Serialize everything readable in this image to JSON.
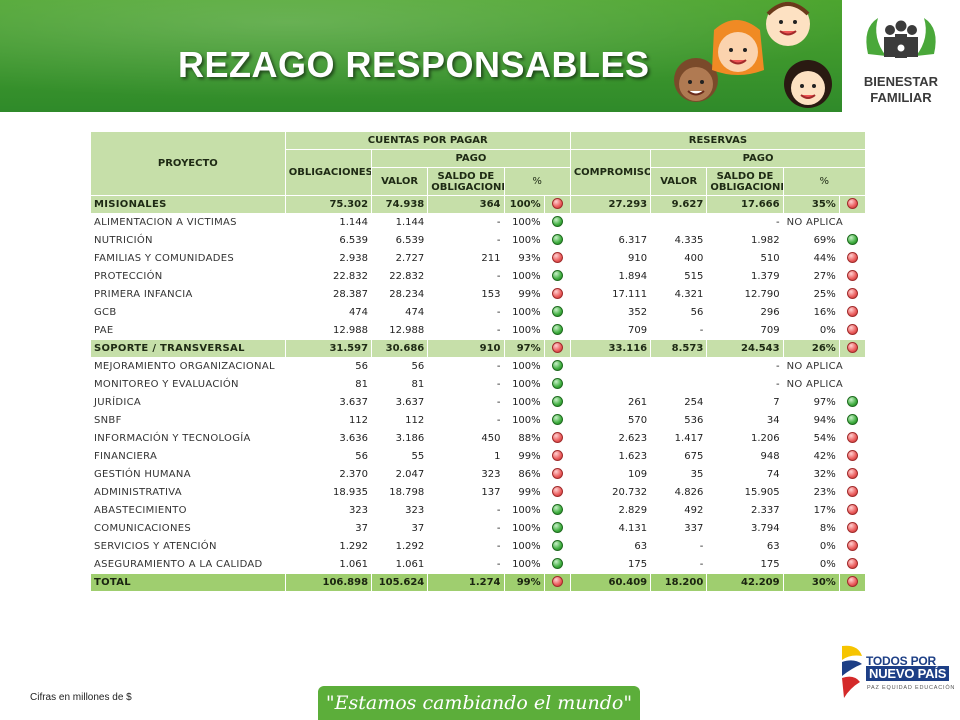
{
  "slide": {
    "title": "REZAGO RESPONSABLES",
    "logo_line1": "BIENESTAR",
    "logo_line2": "FAMILIAR",
    "footnote": "Cifras en millones de $",
    "slogan": "\"Estamos cambiando el mundo\"",
    "gov_line1": "TODOS POR UN",
    "gov_line2": "NUEVO PAÍS",
    "gov_line3": "PAZ  EQUIDAD  EDUCACIÓN"
  },
  "colors": {
    "header_green": "#c6dfa9",
    "total_green": "#9fce6f",
    "banner_green": "#3a9a2e",
    "indicator_red": "#ea5a5a",
    "indicator_green": "#3fae3f"
  },
  "table": {
    "headers": {
      "proyecto": "PROYECTO",
      "cuentas": "CUENTAS POR PAGAR",
      "reservas": "RESERVAS",
      "obligaciones": "OBLIGACIONES",
      "compromiso": "COMPROMISO",
      "pago": "PAGO",
      "valor": "VALOR",
      "saldo": "SALDO DE OBLIGACIONES",
      "pct": "%"
    },
    "rows": [
      {
        "type": "group",
        "name": "MISIONALES",
        "obl": "75.302",
        "valor": "74.938",
        "saldo": "364",
        "pct": "100%",
        "ind": "red",
        "comp": "27.293",
        "rvalor": "9.627",
        "rsaldo": "17.666",
        "rpct": "35%",
        "rind": "red"
      },
      {
        "type": "item",
        "name": "ALIMENTACION A VICTIMAS",
        "obl": "1.144",
        "valor": "1.144",
        "saldo": "-",
        "pct": "100%",
        "ind": "green",
        "comp": "",
        "rvalor": "",
        "rsaldo": "-",
        "rpct": "NO APLICA",
        "rind": ""
      },
      {
        "type": "item",
        "name": "NUTRICIÓN",
        "obl": "6.539",
        "valor": "6.539",
        "saldo": "-",
        "pct": "100%",
        "ind": "green",
        "comp": "6.317",
        "rvalor": "4.335",
        "rsaldo": "1.982",
        "rpct": "69%",
        "rind": "green"
      },
      {
        "type": "item",
        "name": "FAMILIAS Y COMUNIDADES",
        "obl": "2.938",
        "valor": "2.727",
        "saldo": "211",
        "pct": "93%",
        "ind": "red",
        "comp": "910",
        "rvalor": "400",
        "rsaldo": "510",
        "rpct": "44%",
        "rind": "red"
      },
      {
        "type": "item",
        "name": "PROTECCIÓN",
        "obl": "22.832",
        "valor": "22.832",
        "saldo": "-",
        "pct": "100%",
        "ind": "green",
        "comp": "1.894",
        "rvalor": "515",
        "rsaldo": "1.379",
        "rpct": "27%",
        "rind": "red"
      },
      {
        "type": "item",
        "name": "PRIMERA INFANCIA",
        "obl": "28.387",
        "valor": "28.234",
        "saldo": "153",
        "pct": "99%",
        "ind": "red",
        "comp": "17.111",
        "rvalor": "4.321",
        "rsaldo": "12.790",
        "rpct": "25%",
        "rind": "red"
      },
      {
        "type": "item",
        "name": "GCB",
        "obl": "474",
        "valor": "474",
        "saldo": "-",
        "pct": "100%",
        "ind": "green",
        "comp": "352",
        "rvalor": "56",
        "rsaldo": "296",
        "rpct": "16%",
        "rind": "red"
      },
      {
        "type": "item",
        "name": "PAE",
        "obl": "12.988",
        "valor": "12.988",
        "saldo": "-",
        "pct": "100%",
        "ind": "green",
        "comp": "709",
        "rvalor": "-",
        "rsaldo": "709",
        "rpct": "0%",
        "rind": "red"
      },
      {
        "type": "group",
        "name": "SOPORTE / TRANSVERSAL",
        "obl": "31.597",
        "valor": "30.686",
        "saldo": "910",
        "pct": "97%",
        "ind": "red",
        "comp": "33.116",
        "rvalor": "8.573",
        "rsaldo": "24.543",
        "rpct": "26%",
        "rind": "red"
      },
      {
        "type": "item",
        "name": "MEJORAMIENTO ORGANIZACIONAL",
        "obl": "56",
        "valor": "56",
        "saldo": "-",
        "pct": "100%",
        "ind": "green",
        "comp": "",
        "rvalor": "",
        "rsaldo": "-",
        "rpct": "NO APLICA",
        "rind": ""
      },
      {
        "type": "item",
        "name": "MONITOREO Y EVALUACIÓN",
        "obl": "81",
        "valor": "81",
        "saldo": "-",
        "pct": "100%",
        "ind": "green",
        "comp": "",
        "rvalor": "",
        "rsaldo": "-",
        "rpct": "NO APLICA",
        "rind": ""
      },
      {
        "type": "item",
        "name": "JURÍDICA",
        "obl": "3.637",
        "valor": "3.637",
        "saldo": "-",
        "pct": "100%",
        "ind": "green",
        "comp": "261",
        "rvalor": "254",
        "rsaldo": "7",
        "rpct": "97%",
        "rind": "green"
      },
      {
        "type": "item",
        "name": "SNBF",
        "obl": "112",
        "valor": "112",
        "saldo": "-",
        "pct": "100%",
        "ind": "green",
        "comp": "570",
        "rvalor": "536",
        "rsaldo": "34",
        "rpct": "94%",
        "rind": "green"
      },
      {
        "type": "item",
        "name": "INFORMACIÓN Y TECNOLOGÍA",
        "obl": "3.636",
        "valor": "3.186",
        "saldo": "450",
        "pct": "88%",
        "ind": "red",
        "comp": "2.623",
        "rvalor": "1.417",
        "rsaldo": "1.206",
        "rpct": "54%",
        "rind": "red"
      },
      {
        "type": "item",
        "name": "FINANCIERA",
        "obl": "56",
        "valor": "55",
        "saldo": "1",
        "pct": "99%",
        "ind": "red",
        "comp": "1.623",
        "rvalor": "675",
        "rsaldo": "948",
        "rpct": "42%",
        "rind": "red"
      },
      {
        "type": "item",
        "name": "GESTIÓN HUMANA",
        "obl": "2.370",
        "valor": "2.047",
        "saldo": "323",
        "pct": "86%",
        "ind": "red",
        "comp": "109",
        "rvalor": "35",
        "rsaldo": "74",
        "rpct": "32%",
        "rind": "red"
      },
      {
        "type": "item",
        "name": "ADMINISTRATIVA",
        "obl": "18.935",
        "valor": "18.798",
        "saldo": "137",
        "pct": "99%",
        "ind": "red",
        "comp": "20.732",
        "rvalor": "4.826",
        "rsaldo": "15.905",
        "rpct": "23%",
        "rind": "red"
      },
      {
        "type": "item",
        "name": "ABASTECIMIENTO",
        "obl": "323",
        "valor": "323",
        "saldo": "-",
        "pct": "100%",
        "ind": "green",
        "comp": "2.829",
        "rvalor": "492",
        "rsaldo": "2.337",
        "rpct": "17%",
        "rind": "red"
      },
      {
        "type": "item",
        "name": "COMUNICACIONES",
        "obl": "37",
        "valor": "37",
        "saldo": "-",
        "pct": "100%",
        "ind": "green",
        "comp": "4.131",
        "rvalor": "337",
        "rsaldo": "3.794",
        "rpct": "8%",
        "rind": "red"
      },
      {
        "type": "item",
        "name": "SERVICIOS Y ATENCIÓN",
        "obl": "1.292",
        "valor": "1.292",
        "saldo": "-",
        "pct": "100%",
        "ind": "green",
        "comp": "63",
        "rvalor": "-",
        "rsaldo": "63",
        "rpct": "0%",
        "rind": "red"
      },
      {
        "type": "item",
        "name": "ASEGURAMIENTO A LA CALIDAD",
        "obl": "1.061",
        "valor": "1.061",
        "saldo": "-",
        "pct": "100%",
        "ind": "green",
        "comp": "175",
        "rvalor": "-",
        "rsaldo": "175",
        "rpct": "0%",
        "rind": "red"
      },
      {
        "type": "total",
        "name": "TOTAL",
        "obl": "106.898",
        "valor": "105.624",
        "saldo": "1.274",
        "pct": "99%",
        "ind": "red",
        "comp": "60.409",
        "rvalor": "18.200",
        "rsaldo": "42.209",
        "rpct": "30%",
        "rind": "red"
      }
    ]
  }
}
